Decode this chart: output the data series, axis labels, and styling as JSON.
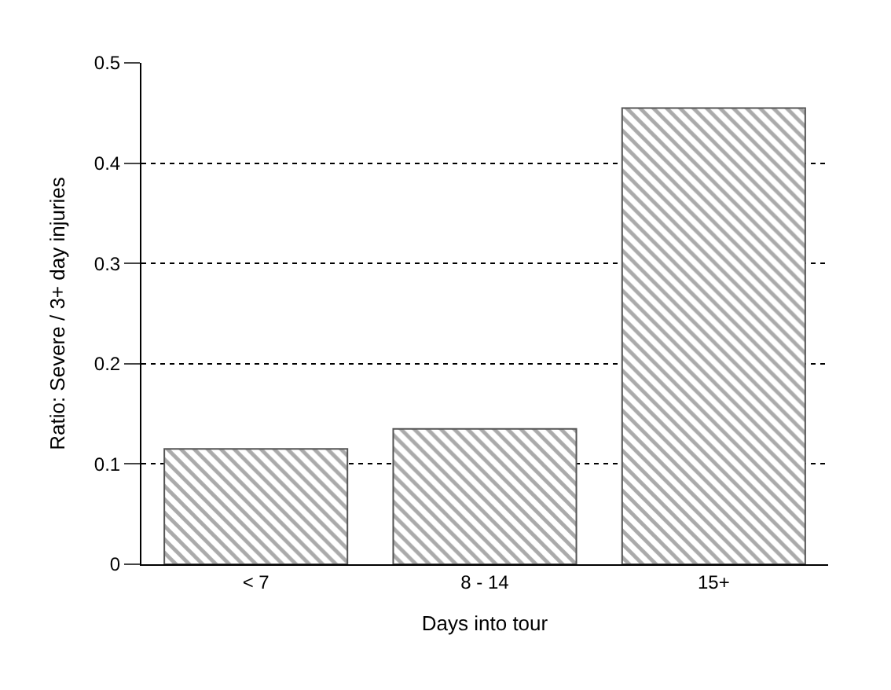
{
  "chart_data": {
    "type": "bar",
    "xlabel": "Days into tour",
    "ylabel": "Ratio: Severe / 3+ day injuries",
    "categories": [
      "< 7",
      "8 - 14",
      "15+"
    ],
    "values": [
      0.115,
      0.135,
      0.455
    ],
    "color": "#555555",
    "ylim": [
      0,
      0.5
    ],
    "yticks": [
      0,
      0.1,
      0.2,
      0.3,
      0.4,
      0.5
    ],
    "grid": "y"
  }
}
